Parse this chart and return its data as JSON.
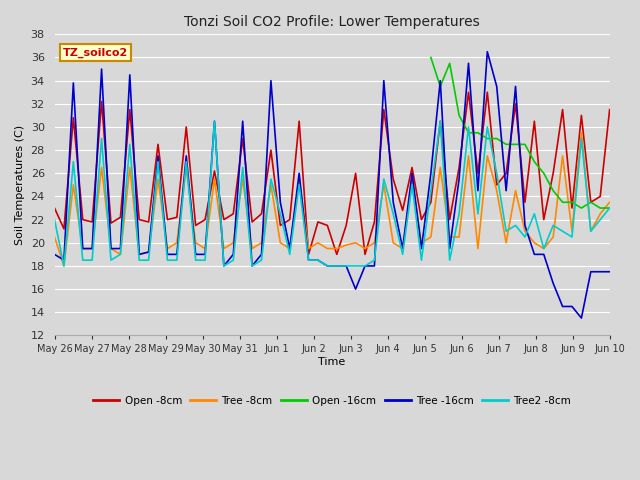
{
  "title": "Tonzi Soil CO2 Profile: Lower Temperatures",
  "xlabel": "Time",
  "ylabel": "Soil Temperatures (C)",
  "ylim": [
    12,
    38
  ],
  "yticks": [
    12,
    14,
    16,
    18,
    20,
    22,
    24,
    26,
    28,
    30,
    32,
    34,
    36,
    38
  ],
  "annotation": "TZ_soilco2",
  "annotation_color": "#cc0000",
  "annotation_bg": "#ffffcc",
  "annotation_border": "#cc8800",
  "fig_bg": "#d8d8d8",
  "plot_bg": "#d8d8d8",
  "grid_color": "#ffffff",
  "xtick_labels": [
    "May 26",
    "May 27",
    "May 28",
    "May 29",
    "May 30",
    "May 31",
    "Jun 1",
    "Jun 2",
    "Jun 3",
    "Jun 4",
    "Jun 5",
    "Jun 6",
    "Jun 7",
    "Jun 8",
    "Jun 9",
    "Jun 10"
  ],
  "series_order": [
    "Open -8cm",
    "Tree -8cm",
    "Open -16cm",
    "Tree -16cm",
    "Tree2 -8cm"
  ],
  "series": {
    "Open -8cm": {
      "color": "#cc0000",
      "data": [
        23.0,
        21.2,
        30.8,
        22.0,
        21.8,
        32.2,
        21.7,
        22.2,
        31.5,
        22.0,
        21.8,
        28.5,
        22.0,
        22.2,
        30.0,
        21.5,
        22.0,
        26.2,
        22.0,
        22.5,
        29.0,
        21.8,
        22.5,
        28.0,
        21.5,
        22.0,
        30.5,
        19.0,
        21.8,
        21.5,
        19.0,
        21.5,
        26.0,
        19.0,
        21.8,
        31.5,
        25.5,
        22.8,
        26.5,
        22.0,
        23.5,
        30.5,
        22.0,
        26.5,
        33.0,
        26.0,
        33.0,
        25.0,
        26.0,
        32.0,
        23.5,
        30.5,
        22.0,
        26.0,
        31.5,
        23.0,
        31.0,
        23.5,
        24.0,
        31.5
      ]
    },
    "Tree -8cm": {
      "color": "#ff8800",
      "data": [
        20.5,
        18.0,
        25.0,
        19.5,
        19.5,
        26.5,
        19.5,
        19.0,
        26.5,
        19.0,
        19.2,
        25.5,
        19.5,
        20.0,
        26.5,
        20.0,
        19.5,
        25.5,
        19.5,
        20.0,
        25.5,
        19.5,
        20.0,
        25.0,
        20.0,
        19.5,
        25.5,
        19.5,
        20.0,
        19.5,
        19.5,
        19.8,
        20.0,
        19.5,
        20.0,
        25.0,
        20.0,
        19.5,
        25.5,
        20.0,
        20.5,
        26.5,
        20.5,
        20.5,
        27.5,
        19.5,
        27.5,
        24.5,
        20.0,
        24.5,
        21.0,
        20.0,
        19.5,
        20.5,
        27.5,
        21.0,
        29.5,
        21.0,
        22.5,
        23.5
      ]
    },
    "Open -16cm": {
      "color": "#00cc00",
      "data": [
        null,
        null,
        null,
        null,
        null,
        null,
        null,
        null,
        null,
        null,
        null,
        null,
        null,
        null,
        null,
        null,
        null,
        null,
        null,
        null,
        null,
        null,
        null,
        null,
        null,
        null,
        null,
        null,
        null,
        null,
        null,
        null,
        null,
        null,
        null,
        null,
        null,
        null,
        null,
        null,
        36.0,
        33.5,
        35.5,
        31.0,
        29.5,
        29.5,
        29.0,
        29.0,
        28.5,
        28.5,
        28.5,
        27.0,
        26.0,
        24.5,
        23.5,
        23.5,
        23.0,
        23.5,
        23.0,
        23.0
      ]
    },
    "Tree -16cm": {
      "color": "#0000cc",
      "data": [
        19.0,
        18.5,
        33.8,
        19.5,
        19.5,
        35.0,
        19.5,
        19.5,
        34.5,
        19.0,
        19.2,
        27.5,
        19.0,
        19.0,
        27.5,
        19.0,
        19.0,
        30.5,
        18.0,
        19.0,
        30.5,
        18.0,
        19.0,
        34.0,
        23.5,
        19.5,
        26.0,
        18.5,
        18.5,
        18.0,
        18.0,
        18.0,
        16.0,
        18.0,
        18.0,
        34.0,
        23.5,
        19.5,
        26.0,
        19.5,
        26.0,
        34.0,
        19.5,
        25.5,
        35.5,
        24.5,
        36.5,
        33.5,
        24.5,
        33.5,
        21.5,
        19.0,
        19.0,
        16.5,
        14.5,
        14.5,
        13.5,
        17.5,
        17.5,
        17.5
      ]
    },
    "Tree2 -8cm": {
      "color": "#00cccc",
      "data": [
        22.0,
        18.0,
        27.0,
        18.5,
        18.5,
        29.0,
        18.5,
        19.0,
        28.5,
        18.5,
        18.5,
        27.0,
        18.5,
        18.5,
        27.0,
        18.5,
        18.5,
        30.5,
        18.0,
        18.5,
        26.5,
        18.0,
        18.5,
        25.5,
        22.5,
        19.0,
        25.0,
        18.5,
        18.5,
        18.0,
        18.0,
        18.0,
        18.0,
        18.0,
        18.5,
        25.5,
        22.5,
        19.0,
        25.0,
        18.5,
        24.5,
        30.5,
        18.5,
        22.5,
        30.0,
        22.5,
        30.0,
        26.0,
        21.0,
        21.5,
        20.5,
        22.5,
        19.5,
        21.5,
        21.0,
        20.5,
        29.0,
        21.0,
        22.0,
        23.0
      ]
    }
  }
}
